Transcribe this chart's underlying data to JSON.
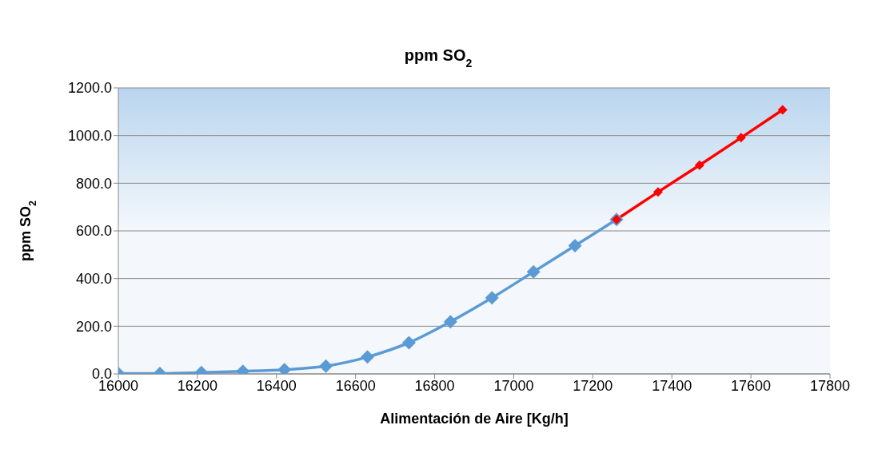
{
  "chart_data": {
    "type": "line",
    "title": "ppm SO$_{2}$",
    "xlabel": "Alimentación de Aire [Kg/h]",
    "ylabel": "ppm SO$_{2}$",
    "xlim": [
      16000,
      17800
    ],
    "xticks": [
      16000,
      16200,
      16400,
      16600,
      16800,
      17000,
      17200,
      17400,
      17600,
      17800
    ],
    "ylim": [
      0,
      1200
    ],
    "yticks": [
      {
        "value": 0,
        "label": "0.0"
      },
      {
        "value": 200,
        "label": "200.0"
      },
      {
        "value": 400,
        "label": "400.0"
      },
      {
        "value": 600,
        "label": "600.0"
      },
      {
        "value": 800,
        "label": "800.0"
      },
      {
        "value": 1000,
        "label": "1000.0"
      },
      {
        "value": 1200,
        "label": "1200.0"
      }
    ],
    "grid": "y",
    "marker": "diamond",
    "line_style": "solid",
    "series": [
      {
        "color": "#5b9bd5",
        "x": [
          16000,
          16105,
          16210,
          16315,
          16420,
          16525,
          16630,
          16735,
          16840,
          16945,
          17050,
          17155,
          17260
        ],
        "values": [
          2,
          2,
          6,
          11,
          18,
          33,
          71,
          131,
          219,
          319,
          428,
          538,
          648
        ]
      },
      {
        "color": "#ff0000",
        "x": [
          17260,
          17365,
          17470,
          17575,
          17680
        ],
        "values": [
          648,
          763,
          876,
          991,
          1108
        ]
      }
    ]
  }
}
